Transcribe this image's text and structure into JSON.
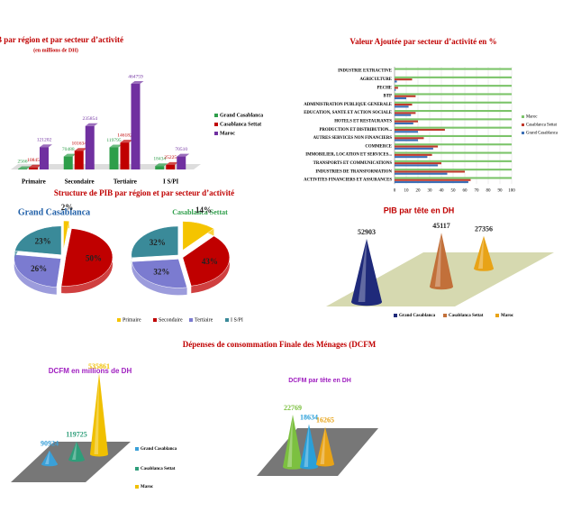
{
  "structure_title": "Structure de PIB par région et par secteur d’activité",
  "section_title": "Dépenses de consommation Finale des Ménages (DCFM",
  "chart_data": [
    {
      "type": "bar3d",
      "title": "PIB par région et par secteur d’activité",
      "subtitle": "(en millions de DH)",
      "categories": [
        "Primaire",
        "Secondaire",
        "Tertiaire",
        "I S/PI"
      ],
      "series": [
        {
          "name": "Grand Casablanca",
          "color": "#2e9e4a",
          "values": [
            2566,
            70488,
            119795,
            18434
          ]
        },
        {
          "name": "Casablanca Settat",
          "color": "#c00000",
          "values": [
            10845,
            101634,
            146182,
            25225
          ]
        },
        {
          "name": "Maroc",
          "color": "#7030a0",
          "values": [
            121202,
            235854,
            464759,
            70510
          ]
        }
      ]
    },
    {
      "type": "hbar",
      "title": "Valeur Ajoutée par secteur d’activité en %",
      "categories": [
        "INDUSTRIE EXTRACTIVE",
        "AGRICULTURE",
        "PECHE",
        "BTP",
        "ADMINISTRATION PUBLIQUE GENERALE",
        "EDUCATION, SANTE ET ACTION SOCIALE",
        "HOTELS ET RESTAURANTS",
        "PRODUCTION ET DISTRIBUTION...",
        "AUTRES SERVICES NON FINANCIERS",
        "COMMERCE",
        "IMMOBILIER, LOCATION ET SERVICES...",
        "TRANSPORTS ET COMMUNICATIONS",
        "INDUSTRIES DE TRANSFORMATION",
        "ACTIVITES FINANCIERS ET ASSURANCES"
      ],
      "series": [
        {
          "name": "Maroc",
          "color": "#7cc46a",
          "values": [
            100,
            100,
            100,
            100,
            100,
            100,
            100,
            100,
            100,
            100,
            100,
            100,
            100,
            100
          ]
        },
        {
          "name": "Casablanca Settat",
          "color": "#c0392b",
          "values": [
            0,
            15,
            3,
            18,
            15,
            18,
            20,
            43,
            25,
            37,
            32,
            40,
            60,
            65
          ]
        },
        {
          "name": "Grand Casablanca",
          "color": "#3b6fb6",
          "values": [
            0,
            2,
            1,
            10,
            12,
            14,
            16,
            20,
            20,
            33,
            28,
            37,
            45,
            63
          ]
        }
      ],
      "xlim": [
        0,
        100
      ],
      "xticks": [
        0,
        10,
        20,
        30,
        40,
        50,
        60,
        70,
        80,
        90,
        100
      ],
      "grid": true
    },
    {
      "type": "pie",
      "categories": [
        "Primaire",
        "Secondaire",
        "Tertiaire",
        "I S/PI"
      ],
      "colors": [
        "#f5c400",
        "#c00000",
        "#7b7bd0",
        "#3a8a99"
      ],
      "pies": [
        {
          "title": "Grand Casablanca",
          "values": [
            2,
            50,
            26,
            23
          ],
          "value_labels": [
            "2%",
            "50%",
            "26%",
            "23%"
          ]
        },
        {
          "title": "Casablanca Settat",
          "values": [
            14,
            43,
            32,
            32
          ],
          "value_labels": [
            "14%",
            "43%",
            "32%",
            "32%"
          ]
        }
      ]
    },
    {
      "type": "cone",
      "title": "PIB par tête en DH",
      "categories": [
        "Grand Casablanca",
        "Casablanca Settat",
        "Maroc"
      ],
      "colors": [
        "#1f2a7a",
        "#c2703a",
        "#e8a317"
      ],
      "values": [
        52903,
        45117,
        27356
      ]
    },
    {
      "type": "cone",
      "title": "DCFM en millions de DH",
      "categories": [
        "Grand Casablanca",
        "Casablanca Settat",
        "Maroc"
      ],
      "colors": [
        "#3aa0d8",
        "#2e9e7a",
        "#f0c000"
      ],
      "values": [
        90924,
        119725,
        535861
      ]
    },
    {
      "type": "cone",
      "title": "DCFM par tête en DH",
      "categories": [
        "Grand Casablanca",
        "Casablanca Settat",
        "Maroc"
      ],
      "colors": [
        "#7cc040",
        "#2a9fd8",
        "#e8a317"
      ],
      "values": [
        22769,
        18634,
        16265
      ]
    }
  ]
}
